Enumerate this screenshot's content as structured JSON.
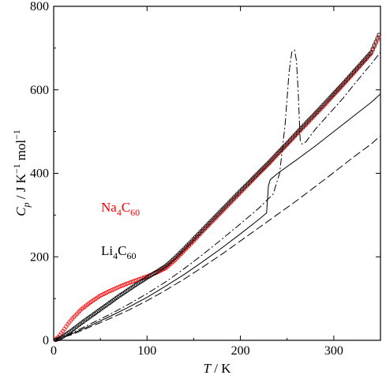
{
  "chart_data": {
    "type": "scatter",
    "xlabel": {
      "symbol": "T",
      "unit": "K"
    },
    "ylabel": {
      "symbol": "C",
      "subscript": "p",
      "unit_prefix": "J K",
      "exp1": "−1",
      "unit_mid": "mol",
      "exp2": "−1"
    },
    "xlim": [
      0,
      350
    ],
    "ylim": [
      0,
      800
    ],
    "x_ticks": [
      0,
      100,
      200,
      300
    ],
    "y_ticks": [
      0,
      200,
      400,
      600,
      800
    ],
    "grid": false,
    "annotations": [
      {
        "base": "Na",
        "sub1": "4",
        "mid": "C",
        "sub2": "60",
        "color": "#ff0000",
        "at": [
          0.5,
          315
        ]
      },
      {
        "base": "Li",
        "sub1": "4",
        "mid": "C",
        "sub2": "60",
        "color": "#000000",
        "at": [
          1.0,
          208
        ]
      }
    ],
    "series": [
      {
        "color": "#ff0000",
        "style": "open-circles",
        "x": [
          2,
          5,
          10,
          15,
          20,
          30,
          40,
          50,
          60,
          70,
          80,
          90,
          100,
          110,
          120,
          130,
          140,
          150,
          160,
          170,
          180,
          190,
          200,
          210,
          220,
          230,
          240,
          250,
          260,
          270,
          280,
          290,
          300,
          310,
          320,
          330,
          340,
          350
        ],
        "y": [
          2,
          8,
          22,
          38,
          52,
          75,
          92,
          107,
          118,
          128,
          137,
          145,
          153,
          162,
          173,
          192,
          215,
          238,
          262,
          285,
          308,
          331,
          354,
          377,
          400,
          422,
          446,
          469,
          493,
          516,
          540,
          563,
          588,
          612,
          637,
          662,
          687,
          735
        ]
      },
      {
        "color": "#000000",
        "style": "open-circles",
        "x": [
          2,
          5,
          10,
          15,
          20,
          30,
          40,
          50,
          60,
          70,
          80,
          90,
          100,
          110,
          120,
          130,
          140,
          150,
          160,
          170,
          180,
          190,
          200,
          210,
          220,
          230,
          240,
          250,
          260,
          270,
          280,
          290,
          300,
          310,
          320,
          330,
          340,
          350
        ],
        "y": [
          1,
          3,
          9,
          17,
          25,
          42,
          58,
          74,
          90,
          106,
          121,
          136,
          150,
          164,
          178,
          198,
          220,
          243,
          266,
          289,
          312,
          335,
          358,
          380,
          403,
          425,
          449,
          472,
          496,
          520,
          543,
          567,
          591,
          615,
          640,
          665,
          690,
          740
        ]
      },
      {
        "color": "#000000",
        "style": "dash-dot",
        "x": [
          0,
          20,
          40,
          60,
          80,
          100,
          120,
          140,
          160,
          180,
          200,
          220,
          235,
          242,
          248,
          252,
          255,
          258,
          260,
          262,
          264,
          266,
          270,
          280,
          290,
          300,
          310,
          320,
          330,
          340,
          350
        ],
        "y": [
          0,
          18,
          40,
          62,
          86,
          112,
          140,
          172,
          206,
          242,
          279,
          317,
          350,
          400,
          520,
          640,
          690,
          695,
          670,
          590,
          480,
          470,
          475,
          505,
          530,
          555,
          580,
          608,
          635,
          662,
          690
        ]
      },
      {
        "color": "#000000",
        "style": "long-dash",
        "x": [
          0,
          20,
          40,
          60,
          80,
          100,
          120,
          140,
          160,
          180,
          200,
          220,
          240,
          260,
          280,
          300,
          320,
          340,
          350
        ],
        "y": [
          0,
          14,
          33,
          52,
          72,
          95,
          120,
          147,
          176,
          206,
          238,
          270,
          302,
          334,
          368,
          402,
          437,
          470,
          490
        ]
      },
      {
        "color": "#000000",
        "style": "solid",
        "x": [
          0,
          20,
          40,
          60,
          80,
          100,
          120,
          140,
          160,
          180,
          200,
          220,
          228,
          230,
          232,
          240,
          260,
          280,
          300,
          320,
          340,
          350
        ],
        "y": [
          0,
          16,
          36,
          57,
          79,
          103,
          130,
          158,
          189,
          221,
          255,
          290,
          305,
          370,
          385,
          400,
          432,
          465,
          500,
          535,
          570,
          590
        ]
      }
    ]
  }
}
